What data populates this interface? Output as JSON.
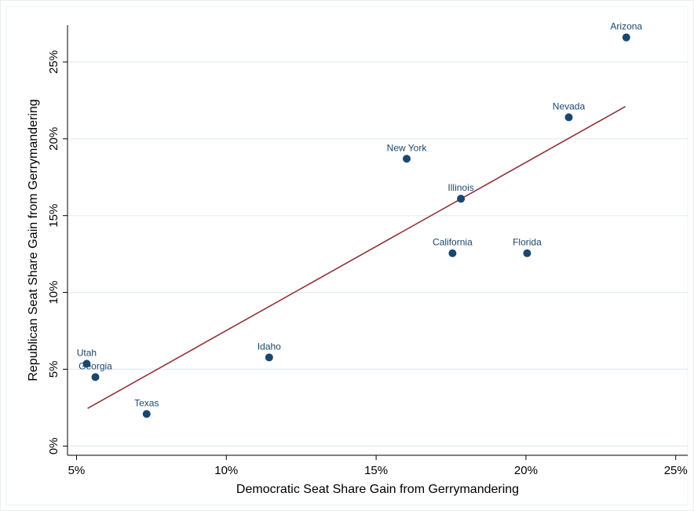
{
  "chart_data": {
    "type": "scatter",
    "x_label": "Democratic Seat Share Gain from Gerrymandering",
    "y_label": "Republican Seat Share Gain from Gerrymandering",
    "labels": [
      "Arizona",
      "Nevada",
      "New York",
      "Illinois",
      "California",
      "Florida",
      "Idaho",
      "Utah",
      "Georgia",
      "Texas"
    ],
    "x": [
      23.35,
      21.43,
      16.02,
      17.83,
      17.55,
      20.04,
      11.43,
      5.34,
      5.63,
      7.34
    ],
    "y": [
      26.6,
      21.4,
      18.7,
      16.1,
      12.55,
      12.55,
      5.77,
      5.36,
      4.49,
      2.09
    ],
    "color": "#1a476f",
    "fit": {
      "x": [
        5.37,
        23.32
      ],
      "y": [
        2.45,
        22.1
      ],
      "color": "#90353b"
    },
    "xlim": [
      4.7,
      25.4
    ],
    "ylim": [
      -0.6,
      27.4
    ],
    "xticks": [
      {
        "value": 5,
        "label": "5%"
      },
      {
        "value": 10,
        "label": "10%"
      },
      {
        "value": 15,
        "label": "15%"
      },
      {
        "value": 20,
        "label": "20%"
      },
      {
        "value": 25,
        "label": "25%"
      }
    ],
    "yticks": [
      {
        "value": 0,
        "label": "0%"
      },
      {
        "value": 5,
        "label": "5%"
      },
      {
        "value": 10,
        "label": "10%"
      },
      {
        "value": 15,
        "label": "15%"
      },
      {
        "value": 20,
        "label": "20%"
      },
      {
        "value": 25,
        "label": "25%"
      }
    ],
    "grid": true
  }
}
